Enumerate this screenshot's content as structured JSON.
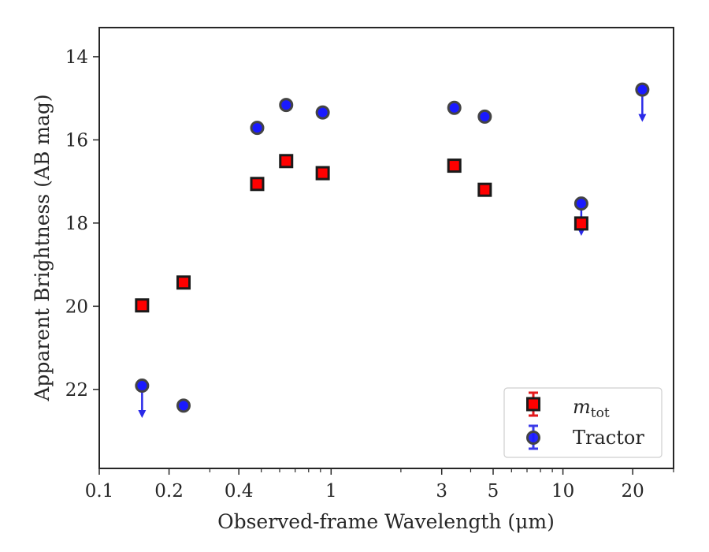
{
  "chart_data": {
    "type": "scatter",
    "xlabel": "Observed-frame Wavelength (μm)",
    "ylabel": "Apparent Brightness (AB mag)",
    "x_scale": "log",
    "xlim": [
      0.1,
      30
    ],
    "ylim": [
      23.9,
      13.3
    ],
    "y_inverted": true,
    "x_ticks": [
      {
        "value": 0.1,
        "label": "0.1"
      },
      {
        "value": 0.2,
        "label": "0.2"
      },
      {
        "value": 0.4,
        "label": "0.4"
      },
      {
        "value": 1,
        "label": "1"
      },
      {
        "value": 3,
        "label": "3"
      },
      {
        "value": 5,
        "label": "5"
      },
      {
        "value": 10,
        "label": "10"
      },
      {
        "value": 20,
        "label": "20"
      }
    ],
    "y_ticks": [
      {
        "value": 14,
        "label": "14"
      },
      {
        "value": 16,
        "label": "16"
      },
      {
        "value": 18,
        "label": "18"
      },
      {
        "value": 20,
        "label": "20"
      },
      {
        "value": 22,
        "label": "22"
      }
    ],
    "grid": false,
    "legend_position": "lower-right",
    "series": [
      {
        "name": "m_tot",
        "legend_label": {
          "main": "m",
          "sub": "tot"
        },
        "marker": "square",
        "face_color": "#ff0000",
        "edge_color": "#1a1a1a",
        "errorbar_color": "#e41a1c",
        "points": [
          {
            "x": 0.153,
            "y": 19.98,
            "upper_limit": false
          },
          {
            "x": 0.231,
            "y": 19.43,
            "upper_limit": false
          },
          {
            "x": 0.48,
            "y": 17.06,
            "upper_limit": false
          },
          {
            "x": 0.64,
            "y": 16.51,
            "upper_limit": false
          },
          {
            "x": 0.92,
            "y": 16.8,
            "upper_limit": false
          },
          {
            "x": 3.4,
            "y": 16.62,
            "upper_limit": false
          },
          {
            "x": 4.6,
            "y": 17.2,
            "upper_limit": false
          },
          {
            "x": 12.0,
            "y": 18.01,
            "upper_limit": false
          }
        ]
      },
      {
        "name": "Tractor",
        "marker": "circle",
        "face_color": "#1a1aff",
        "edge_color": "#444444",
        "errorbar_color": "#3a3ae8",
        "points": [
          {
            "x": 0.153,
            "y": 21.91,
            "upper_limit": true
          },
          {
            "x": 0.231,
            "y": 22.39,
            "upper_limit": false
          },
          {
            "x": 0.48,
            "y": 15.71,
            "upper_limit": false
          },
          {
            "x": 0.64,
            "y": 15.16,
            "upper_limit": false
          },
          {
            "x": 0.92,
            "y": 15.34,
            "upper_limit": false
          },
          {
            "x": 3.4,
            "y": 15.23,
            "upper_limit": false
          },
          {
            "x": 4.6,
            "y": 15.44,
            "upper_limit": false
          },
          {
            "x": 12.0,
            "y": 17.53,
            "upper_limit": true
          },
          {
            "x": 22.0,
            "y": 14.79,
            "upper_limit": true
          }
        ]
      }
    ]
  }
}
